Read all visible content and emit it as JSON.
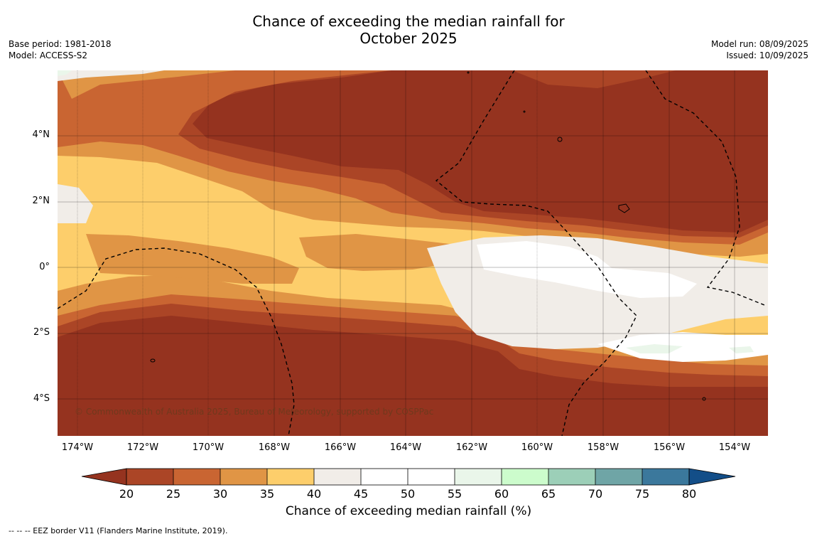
{
  "title_line1": "Chance of exceeding the median rainfall for",
  "title_line2": "October 2025",
  "base_period": "Base period: 1981-2018",
  "model": "Model: ACCESS-S2",
  "model_run": "Model run: 08/09/2025",
  "issued": "Issued: 10/09/2025",
  "copyright": "© Commonwealth of Australia 2025, Bureau of Meteorology, supported by COSPPac",
  "footer": "--  --  -- EEZ border V11 (Flanders Marine Institute, 2019).",
  "axes": {
    "lat_labels": [
      "4°N",
      "2°N",
      "0°",
      "2°S",
      "4°S"
    ],
    "lon_labels": [
      "174°W",
      "172°W",
      "170°W",
      "168°W",
      "166°W",
      "164°W",
      "162°W",
      "160°W",
      "158°W",
      "156°W",
      "154°W"
    ]
  },
  "colorbar": {
    "title": "Chance of exceeding median rainfall (%)",
    "ticks": [
      "20",
      "25",
      "30",
      "35",
      "40",
      "45",
      "50",
      "55",
      "60",
      "65",
      "70",
      "75",
      "80"
    ],
    "colors": {
      "below_20": "#95331f",
      "20_25": "#ab4526",
      "25_30": "#c96532",
      "30_35": "#e09545",
      "35_40": "#fdce6b",
      "40_45": "#f1ede8",
      "45_50": "#ffffff",
      "50_55": "#ffffff",
      "55_60": "#eaf6ea",
      "60_65": "#ccfccc",
      "65_70": "#9ccfb8",
      "70_75": "#6fa5a6",
      "75_80": "#3b789c",
      "above_80": "#134e88"
    }
  }
}
